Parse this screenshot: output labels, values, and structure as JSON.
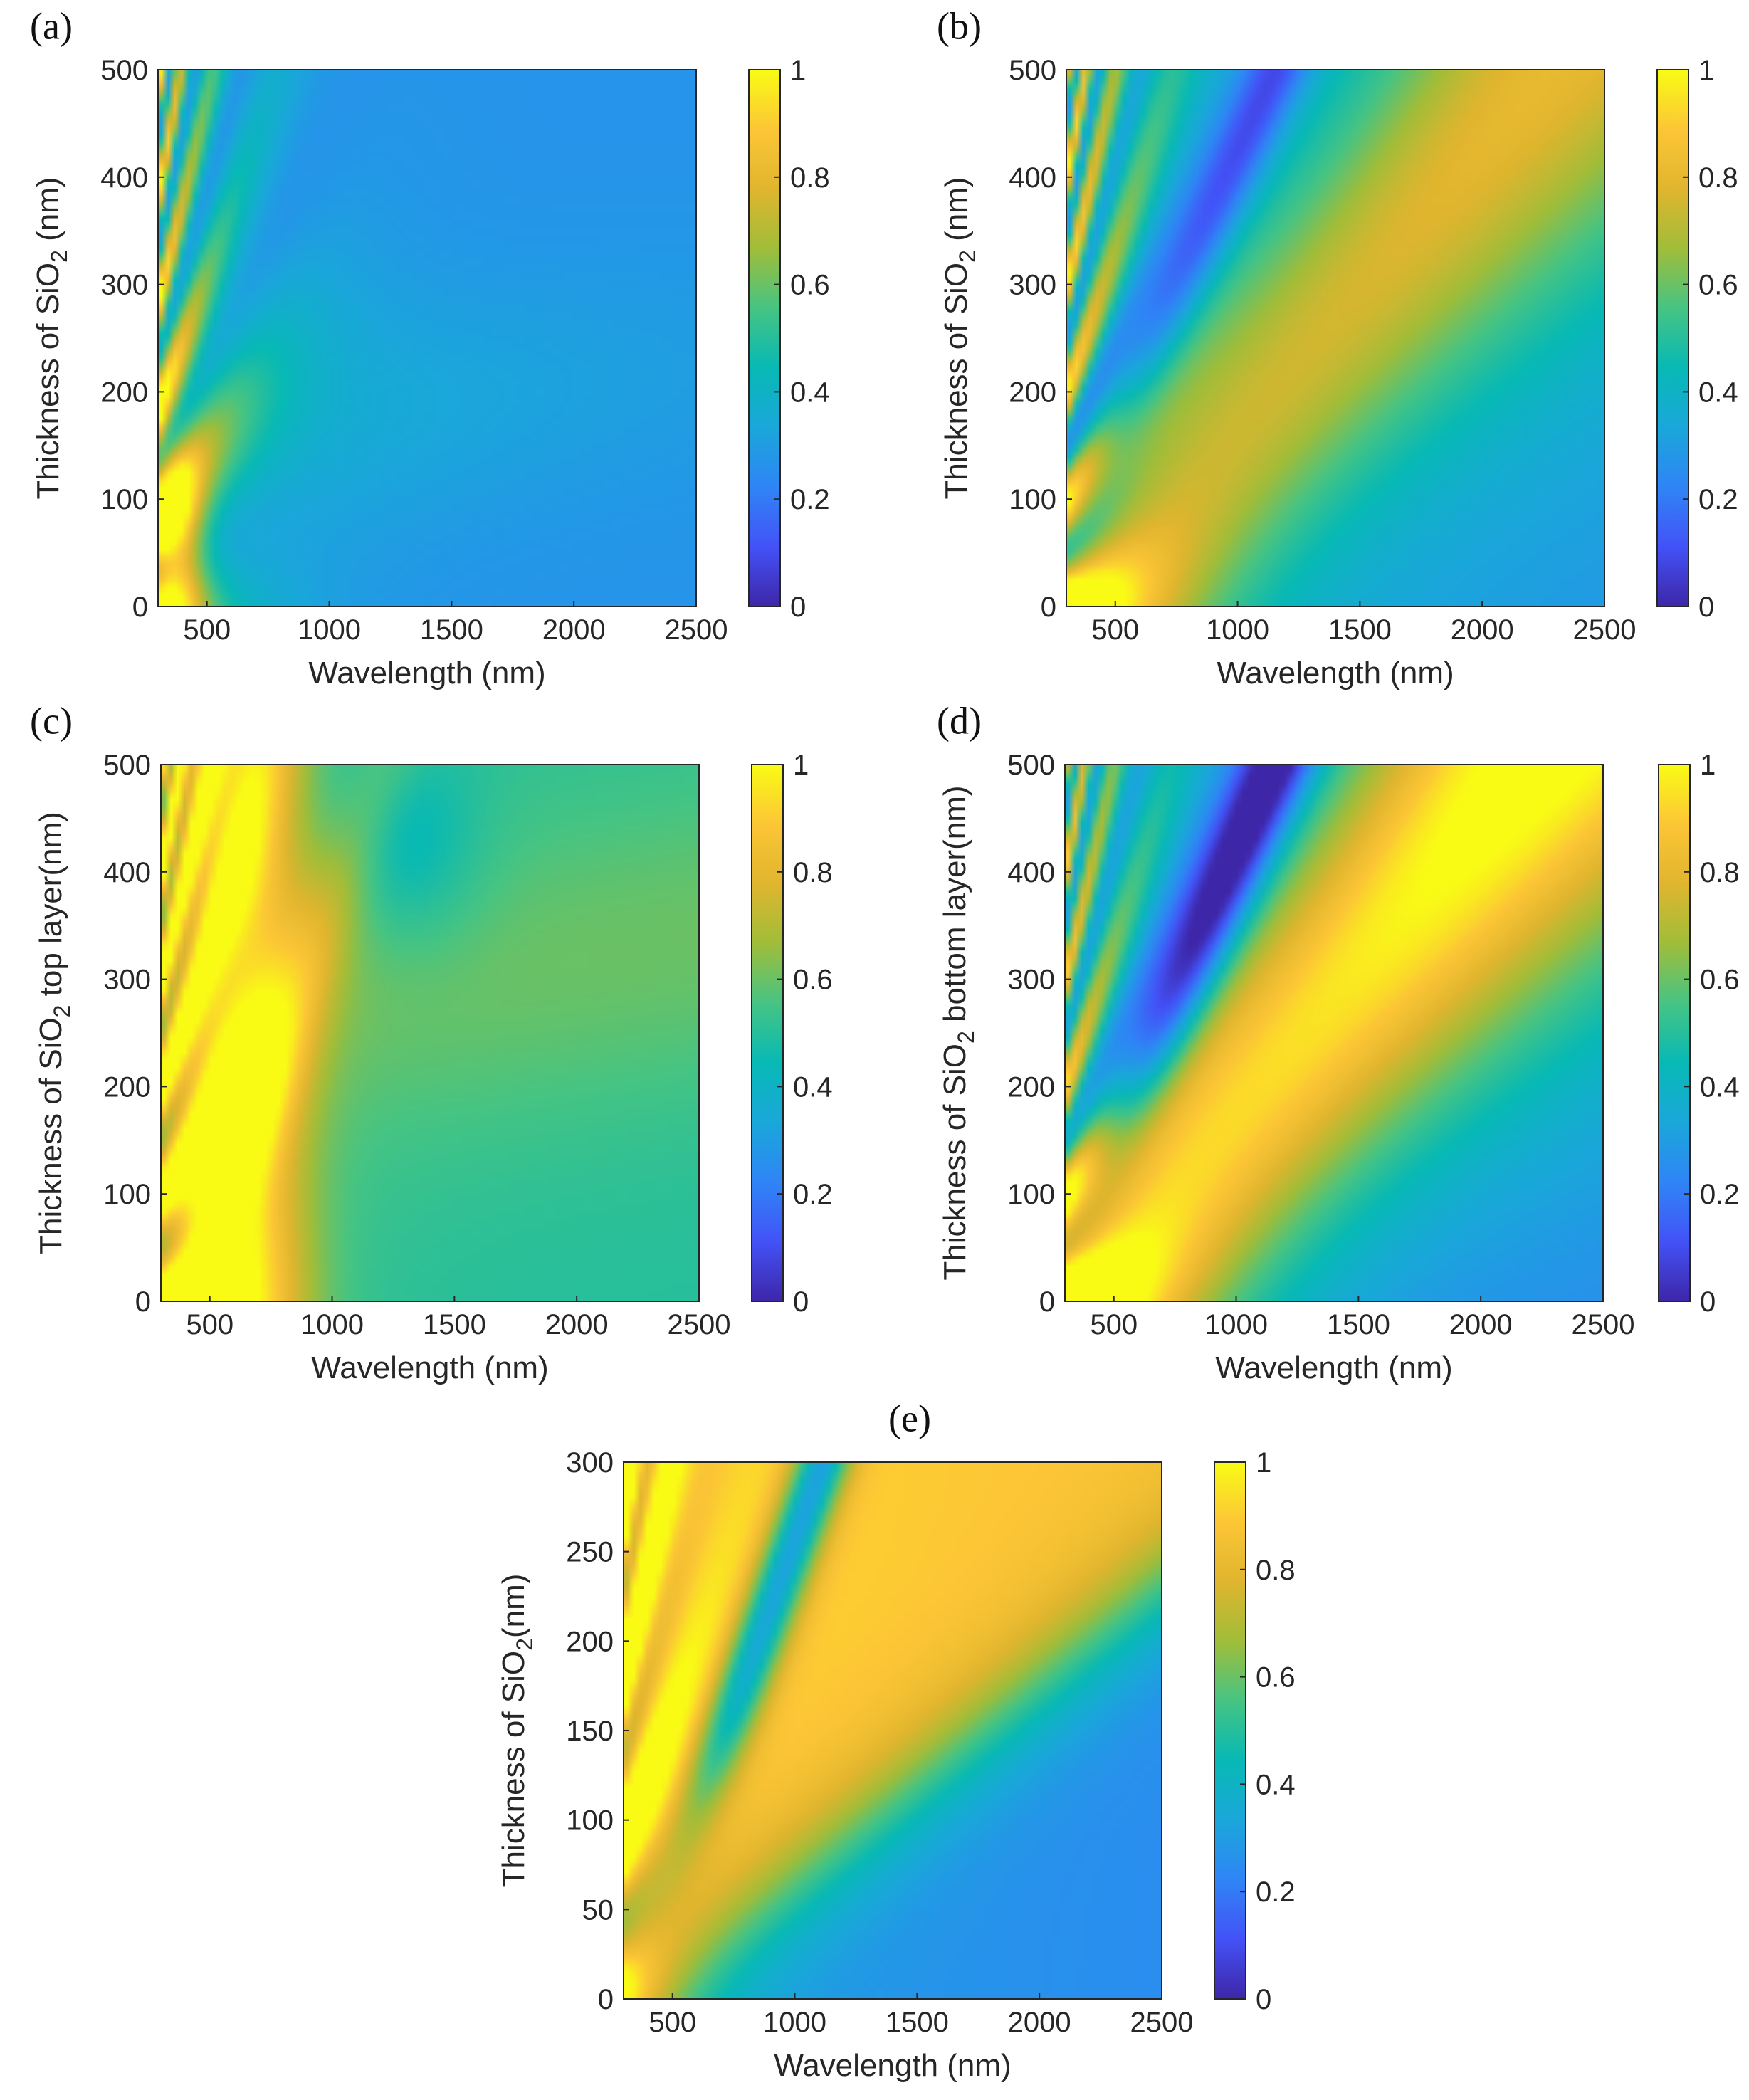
{
  "colormap": {
    "name": "parula",
    "stops": [
      "#3e26a8",
      "#4352f7",
      "#2f85f6",
      "#1aa7da",
      "#07b9b5",
      "#46c483",
      "#a0bd39",
      "#e0b52e",
      "#fcc636",
      "#f9fb15"
    ]
  },
  "chart_data": [
    {
      "type": "heatmap",
      "panel_label": "(a)",
      "xlabel": "Wavelength (nm)",
      "ylabel_text": "Thickness of SiO",
      "ylabel_sub": "2",
      "ylabel_suffix": " (nm)",
      "xlim": [
        300,
        2500
      ],
      "ylim": [
        0,
        500
      ],
      "xticks": [
        "500",
        "1000",
        "1500",
        "2000",
        "2500"
      ],
      "yticks": [
        "0",
        "100",
        "200",
        "300",
        "400",
        "500"
      ],
      "colorbar": {
        "range": [
          0,
          1
        ],
        "ticks": [
          "0",
          "0.2",
          "0.4",
          "0.6",
          "0.8",
          "1"
        ]
      },
      "value_description": "high absorption (~1) near short wavelengths with interference fringes; ~0.25-0.4 elsewhere"
    },
    {
      "type": "heatmap",
      "panel_label": "(b)",
      "xlabel": "Wavelength (nm)",
      "ylabel_text": "Thickness of SiO",
      "ylabel_sub": "2",
      "ylabel_suffix": " (nm)",
      "xlim": [
        300,
        2500
      ],
      "ylim": [
        0,
        500
      ],
      "xticks": [
        "500",
        "1000",
        "1500",
        "2000",
        "2500"
      ],
      "yticks": [
        "0",
        "100",
        "200",
        "300",
        "400",
        "500"
      ],
      "colorbar": {
        "range": [
          0,
          1
        ],
        "ticks": [
          "0",
          "0.2",
          "0.4",
          "0.6",
          "0.8",
          "1"
        ]
      },
      "value_description": "broad high band (~0.85) rising diagonally with thickness; low band (~0.2) above it"
    },
    {
      "type": "heatmap",
      "panel_label": "(c)",
      "xlabel": "Wavelength (nm)",
      "ylabel_text": "Thickness of SiO",
      "ylabel_sub": "2",
      "ylabel_suffix": " top layer(nm)",
      "xlim": [
        300,
        2500
      ],
      "ylim": [
        0,
        500
      ],
      "xticks": [
        "500",
        "1000",
        "1500",
        "2000",
        "2500"
      ],
      "yticks": [
        "0",
        "100",
        "200",
        "300",
        "400",
        "500"
      ],
      "colorbar": {
        "range": [
          0,
          1
        ],
        "ticks": [
          "0",
          "0.2",
          "0.4",
          "0.6",
          "0.8",
          "1"
        ]
      },
      "value_description": "high absorption (~1) in visible region with branching fringes; ~0.5 at long wavelengths"
    },
    {
      "type": "heatmap",
      "panel_label": "(d)",
      "xlabel": "Wavelength (nm)",
      "ylabel_text": "Thickness of SiO",
      "ylabel_sub": "2",
      "ylabel_suffix": " bottom layer(nm)",
      "xlim": [
        300,
        2500
      ],
      "ylim": [
        0,
        500
      ],
      "xticks": [
        "500",
        "1000",
        "1500",
        "2000",
        "2500"
      ],
      "yticks": [
        "0",
        "100",
        "200",
        "300",
        "400",
        "500"
      ],
      "colorbar": {
        "range": [
          0,
          1
        ],
        "ticks": [
          "0",
          "0.2",
          "0.4",
          "0.6",
          "0.8",
          "1"
        ]
      },
      "value_description": "wide yellow band (~0.95) rising with thickness; blue wedge (~0.2) above it"
    },
    {
      "type": "heatmap",
      "panel_label": "(e)",
      "xlabel": "Wavelength (nm)",
      "ylabel_text": "Thickness of SiO",
      "ylabel_sub": "2",
      "ylabel_suffix": "(nm)",
      "xlim": [
        300,
        2500
      ],
      "ylim": [
        0,
        300
      ],
      "xticks": [
        "500",
        "1000",
        "1500",
        "2000",
        "2500"
      ],
      "yticks": [
        "0",
        "50",
        "100",
        "150",
        "200",
        "250",
        "300"
      ],
      "colorbar": {
        "range": [
          0,
          1
        ],
        "ticks": [
          "0",
          "0.2",
          "0.4",
          "0.6",
          "0.8",
          "1"
        ]
      },
      "value_description": "large yellow region (~0.95) over most of plane; blue wedge at short wavelength / large thickness"
    }
  ]
}
